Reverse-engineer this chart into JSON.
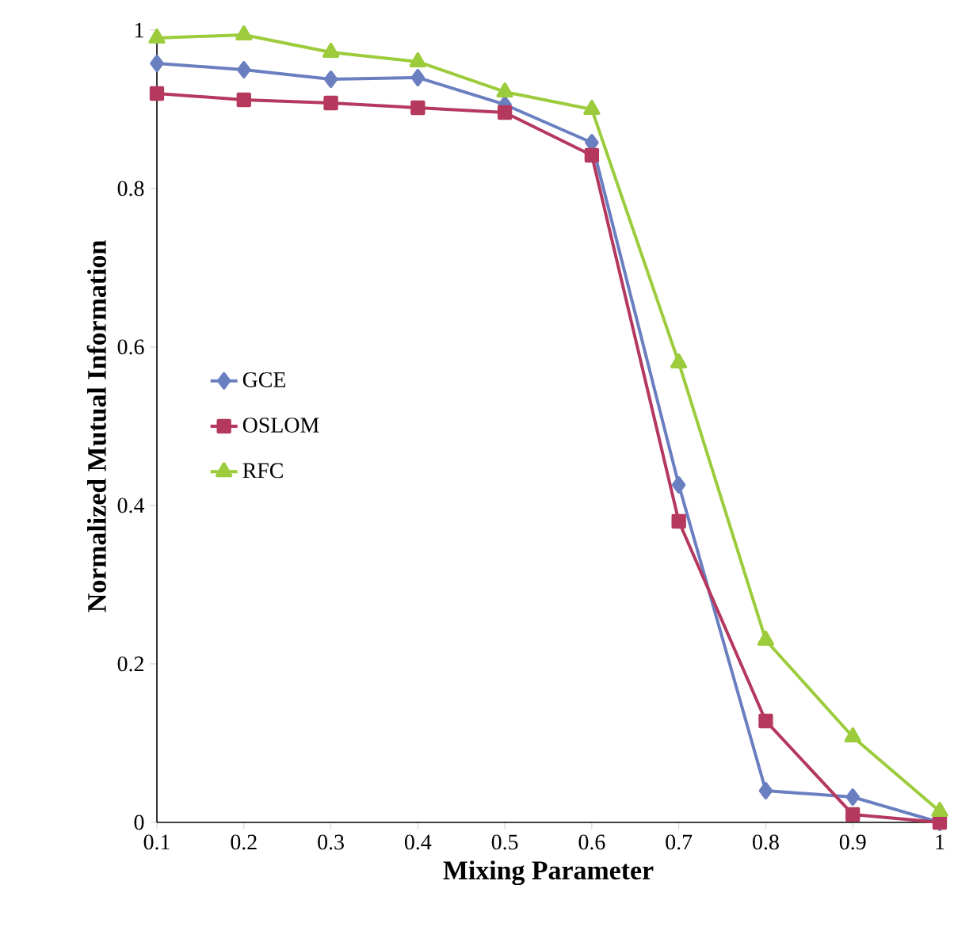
{
  "chart_data": {
    "type": "line",
    "xlabel": "Mixing Parameter",
    "ylabel": "Normalized Mutual Information",
    "x": [
      0.1,
      0.2,
      0.3,
      0.4,
      0.5,
      0.6,
      0.7,
      0.8,
      0.9,
      1
    ],
    "series": [
      {
        "name": "GCE",
        "color": "#6a7fc0",
        "marker": "diamond",
        "values": [
          0.958,
          0.95,
          0.938,
          0.94,
          0.906,
          0.858,
          0.426,
          0.04,
          0.032,
          0
        ]
      },
      {
        "name": "OSLOM",
        "color": "#b5385e",
        "marker": "square",
        "values": [
          0.92,
          0.912,
          0.908,
          0.902,
          0.896,
          0.842,
          0.38,
          0.128,
          0.01,
          0
        ]
      },
      {
        "name": "RFC",
        "color": "#9ccc3c",
        "marker": "triangle",
        "values": [
          0.99,
          0.994,
          0.972,
          0.96,
          0.922,
          0.9,
          0.58,
          0.23,
          0.108,
          0.014
        ]
      }
    ],
    "xlim": [
      0.1,
      1
    ],
    "xticks": [
      0.1,
      0.2,
      0.3,
      0.4,
      0.5,
      0.6,
      0.7,
      0.8,
      0.9,
      1
    ],
    "ylim": [
      0,
      1
    ],
    "yticks": [
      0,
      0.2,
      0.4,
      0.6,
      0.8,
      1
    ],
    "grid": false,
    "legend": "center left",
    "line_style": "solid"
  }
}
